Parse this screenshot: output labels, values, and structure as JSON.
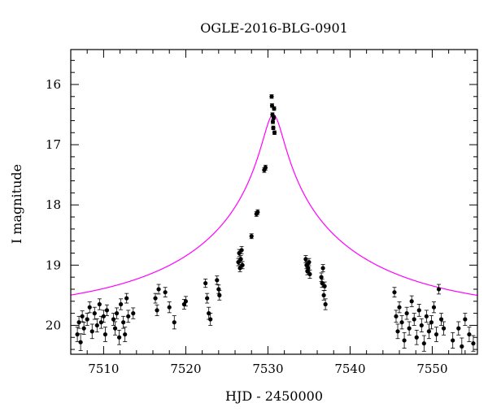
{
  "chart_data": {
    "type": "scatter",
    "title": "OGLE-2016-BLG-0901",
    "xlabel": "HJD - 2450000",
    "ylabel": "I magnitude",
    "xlim": [
      7506,
      7555.5
    ],
    "ylim": [
      20.48,
      15.42
    ],
    "y_inverted": true,
    "x_ticks": [
      7510,
      7520,
      7530,
      7540,
      7550
    ],
    "y_ticks": [
      16,
      17,
      18,
      19,
      20
    ],
    "x_tick_labels": [
      "7510",
      "7520",
      "7530",
      "7540",
      "7550"
    ],
    "y_tick_labels": [
      "16",
      "17",
      "18",
      "19",
      "20"
    ],
    "grid": false,
    "model_color": "#ff00ff",
    "point_color": "#000000",
    "model": {
      "t0": 7530.65,
      "u0": 0.048,
      "tE": 24.0,
      "I_base": 19.8
    },
    "series": [
      {
        "x": [
          7506.8,
          7507.0,
          7507.2,
          7507.4,
          7507.6,
          7508.0,
          7508.3,
          7508.6,
          7508.9,
          7509.2,
          7509.5,
          7509.7,
          7510.0,
          7510.2,
          7510.4,
          7511.2,
          7511.4,
          7511.6,
          7511.9,
          7512.1,
          7512.4,
          7512.6,
          7512.8,
          7513.0,
          7513.6,
          7516.3,
          7516.5,
          7516.7,
          7517.5,
          7518.0,
          7518.6,
          7519.8,
          7520.0,
          7522.4,
          7522.6,
          7522.8,
          7523.0,
          7523.8,
          7524.0,
          7524.1,
          7526.4,
          7526.5,
          7526.6,
          7526.7,
          7526.8,
          7526.9,
          7528.0,
          7528.6,
          7528.75,
          7529.55,
          7529.7,
          7530.45,
          7530.5,
          7530.55,
          7530.6,
          7530.65,
          7530.7,
          7530.75,
          7530.8,
          7534.6,
          7534.7,
          7534.8,
          7534.9,
          7535.0,
          7535.1,
          7536.5,
          7536.6,
          7536.7,
          7536.8,
          7536.9,
          7537.0,
          7545.4,
          7545.6,
          7545.8,
          7546.0,
          7546.3,
          7546.6,
          7546.9,
          7547.2,
          7547.5,
          7547.8,
          7548.1,
          7548.4,
          7548.7,
          7549.0,
          7549.3,
          7549.6,
          7549.9,
          7550.2,
          7550.5,
          7550.8,
          7551.1,
          7551.4,
          7552.5,
          7553.2,
          7553.6,
          7554.0,
          7554.5,
          7555.0
        ],
        "y": [
          20.15,
          19.95,
          20.28,
          19.85,
          20.05,
          19.9,
          19.7,
          20.1,
          19.8,
          20.0,
          19.65,
          19.95,
          19.85,
          20.15,
          19.75,
          19.9,
          20.05,
          19.8,
          20.2,
          19.65,
          19.95,
          20.15,
          19.55,
          19.85,
          19.8,
          19.55,
          19.75,
          19.4,
          19.45,
          19.7,
          19.95,
          19.65,
          19.6,
          19.3,
          19.55,
          19.8,
          19.9,
          19.25,
          19.4,
          19.5,
          18.95,
          18.8,
          19.05,
          18.9,
          18.75,
          19.0,
          18.52,
          18.15,
          18.12,
          17.42,
          17.38,
          16.2,
          16.35,
          16.5,
          16.62,
          16.72,
          16.55,
          16.4,
          16.8,
          18.9,
          19.0,
          19.1,
          19.05,
          18.95,
          19.15,
          19.2,
          19.3,
          19.05,
          19.5,
          19.35,
          19.65,
          19.45,
          19.85,
          20.1,
          19.7,
          19.95,
          20.25,
          19.8,
          20.05,
          19.6,
          19.9,
          20.2,
          19.75,
          20.0,
          20.3,
          19.85,
          20.1,
          19.95,
          19.7,
          20.15,
          19.4,
          19.9,
          20.05,
          20.25,
          20.05,
          20.35,
          19.9,
          20.15,
          20.3
        ],
        "yerr": [
          0.12,
          0.1,
          0.14,
          0.09,
          0.1,
          0.1,
          0.09,
          0.12,
          0.1,
          0.11,
          0.09,
          0.1,
          0.1,
          0.12,
          0.09,
          0.1,
          0.11,
          0.09,
          0.12,
          0.09,
          0.1,
          0.12,
          0.08,
          0.1,
          0.09,
          0.08,
          0.09,
          0.08,
          0.08,
          0.09,
          0.11,
          0.08,
          0.08,
          0.07,
          0.08,
          0.1,
          0.1,
          0.07,
          0.07,
          0.08,
          0.06,
          0.06,
          0.06,
          0.06,
          0.06,
          0.06,
          0.04,
          0.04,
          0.04,
          0.04,
          0.04,
          0.03,
          0.03,
          0.03,
          0.03,
          0.03,
          0.03,
          0.03,
          0.03,
          0.06,
          0.06,
          0.06,
          0.06,
          0.06,
          0.07,
          0.07,
          0.07,
          0.06,
          0.08,
          0.07,
          0.09,
          0.08,
          0.1,
          0.12,
          0.09,
          0.11,
          0.13,
          0.1,
          0.11,
          0.09,
          0.1,
          0.12,
          0.1,
          0.11,
          0.13,
          0.1,
          0.12,
          0.11,
          0.09,
          0.12,
          0.08,
          0.1,
          0.11,
          0.13,
          0.11,
          0.14,
          0.1,
          0.12,
          0.13
        ]
      }
    ]
  }
}
